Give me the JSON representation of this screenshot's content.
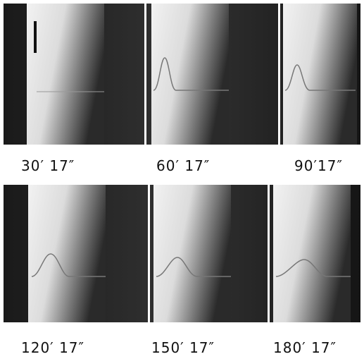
{
  "panels": [
    {
      "label": "30′ 17″"
    },
    {
      "label": "60′ 17″"
    },
    {
      "label": "90′17″"
    },
    {
      "label": "120′ 17″"
    },
    {
      "label": "150′ 17″"
    },
    {
      "label": "180′ 17″"
    }
  ]
}
